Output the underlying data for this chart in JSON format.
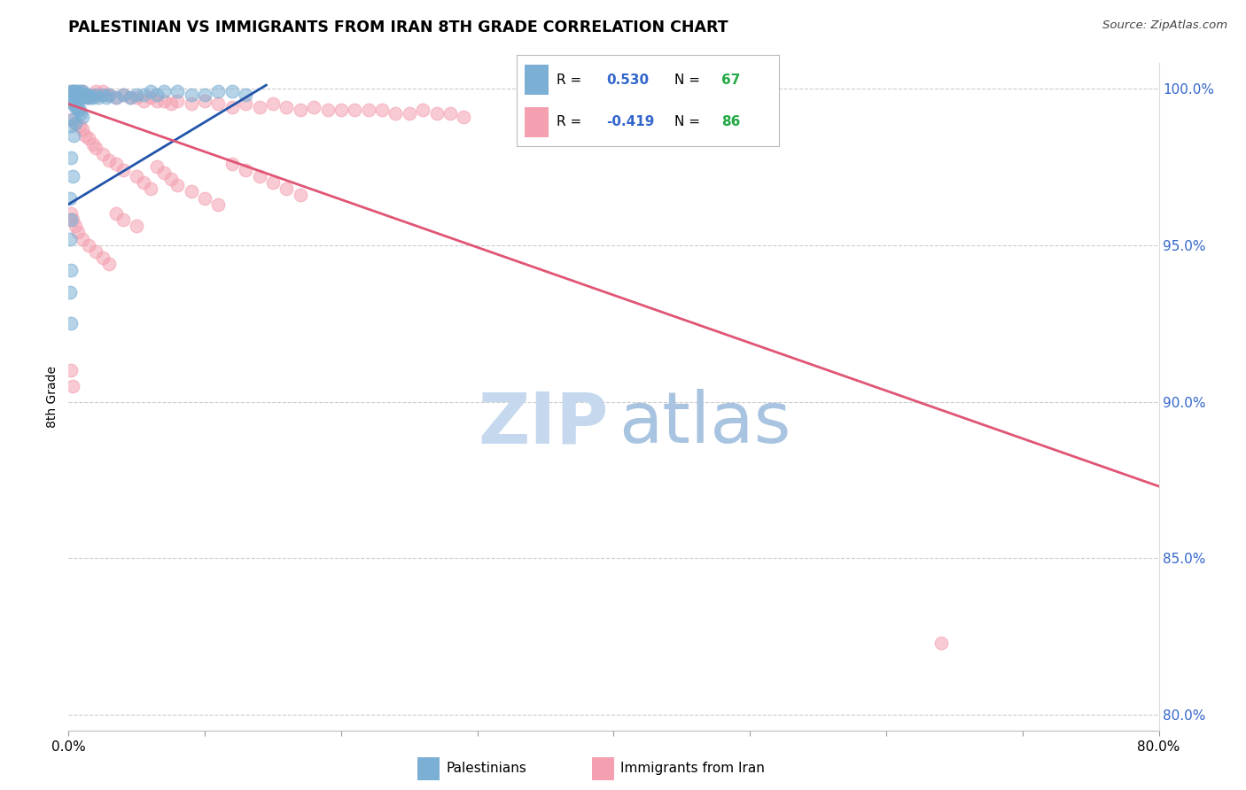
{
  "title": "PALESTINIAN VS IMMIGRANTS FROM IRAN 8TH GRADE CORRELATION CHART",
  "source": "Source: ZipAtlas.com",
  "ylabel": "8th Grade",
  "xlim": [
    0.0,
    0.8
  ],
  "ylim": [
    0.795,
    1.008
  ],
  "xticks": [
    0.0,
    0.1,
    0.2,
    0.3,
    0.4,
    0.5,
    0.6,
    0.7,
    0.8
  ],
  "xticklabels": [
    "0.0%",
    "",
    "",
    "",
    "",
    "",
    "",
    "",
    "80.0%"
  ],
  "yticks_right": [
    0.8,
    0.85,
    0.9,
    0.95,
    1.0
  ],
  "yticklabels_right": [
    "80.0%",
    "85.0%",
    "90.0%",
    "95.0%",
    "100.0%"
  ],
  "blue_color": "#7BAFD4",
  "pink_color": "#F4A0B0",
  "blue_line_color": "#2255AA",
  "pink_line_color": "#E05575",
  "legend_R_color": "#3366CC",
  "legend_N_color": "#22AA44",
  "watermark_zip_color": "#C5D8EE",
  "watermark_atlas_color": "#A8C4E0",
  "grid_color": "#CCCCCC",
  "blue_R": "0.530",
  "blue_N": "67",
  "pink_R": "-0.419",
  "pink_N": "86",
  "blue_scatter": [
    [
      0.001,
      0.999
    ],
    [
      0.002,
      0.998
    ],
    [
      0.002,
      0.997
    ],
    [
      0.003,
      0.999
    ],
    [
      0.003,
      0.998
    ],
    [
      0.004,
      0.999
    ],
    [
      0.004,
      0.998
    ],
    [
      0.004,
      0.997
    ],
    [
      0.005,
      0.999
    ],
    [
      0.005,
      0.998
    ],
    [
      0.005,
      0.997
    ],
    [
      0.006,
      0.999
    ],
    [
      0.006,
      0.998
    ],
    [
      0.007,
      0.998
    ],
    [
      0.007,
      0.997
    ],
    [
      0.008,
      0.999
    ],
    [
      0.008,
      0.998
    ],
    [
      0.009,
      0.997
    ],
    [
      0.01,
      0.999
    ],
    [
      0.01,
      0.998
    ],
    [
      0.011,
      0.998
    ],
    [
      0.012,
      0.997
    ],
    [
      0.013,
      0.998
    ],
    [
      0.014,
      0.997
    ],
    [
      0.015,
      0.998
    ],
    [
      0.016,
      0.997
    ],
    [
      0.018,
      0.997
    ],
    [
      0.02,
      0.998
    ],
    [
      0.022,
      0.997
    ],
    [
      0.025,
      0.998
    ],
    [
      0.028,
      0.997
    ],
    [
      0.03,
      0.998
    ],
    [
      0.035,
      0.997
    ],
    [
      0.04,
      0.998
    ],
    [
      0.045,
      0.997
    ],
    [
      0.05,
      0.998
    ],
    [
      0.055,
      0.998
    ],
    [
      0.06,
      0.999
    ],
    [
      0.065,
      0.998
    ],
    [
      0.07,
      0.999
    ],
    [
      0.08,
      0.999
    ],
    [
      0.09,
      0.998
    ],
    [
      0.1,
      0.998
    ],
    [
      0.11,
      0.999
    ],
    [
      0.12,
      0.999
    ],
    [
      0.13,
      0.998
    ],
    [
      0.002,
      0.996
    ],
    [
      0.003,
      0.995
    ],
    [
      0.004,
      0.995
    ],
    [
      0.005,
      0.994
    ],
    [
      0.006,
      0.994
    ],
    [
      0.007,
      0.993
    ],
    [
      0.008,
      0.993
    ],
    [
      0.009,
      0.992
    ],
    [
      0.01,
      0.991
    ],
    [
      0.003,
      0.99
    ],
    [
      0.005,
      0.989
    ],
    [
      0.002,
      0.988
    ],
    [
      0.004,
      0.985
    ],
    [
      0.002,
      0.978
    ],
    [
      0.003,
      0.972
    ],
    [
      0.001,
      0.965
    ],
    [
      0.002,
      0.958
    ],
    [
      0.001,
      0.952
    ],
    [
      0.002,
      0.942
    ],
    [
      0.001,
      0.935
    ],
    [
      0.002,
      0.925
    ]
  ],
  "pink_scatter": [
    [
      0.003,
      0.999
    ],
    [
      0.005,
      0.998
    ],
    [
      0.007,
      0.997
    ],
    [
      0.008,
      0.998
    ],
    [
      0.01,
      0.999
    ],
    [
      0.012,
      0.998
    ],
    [
      0.015,
      0.997
    ],
    [
      0.018,
      0.998
    ],
    [
      0.02,
      0.999
    ],
    [
      0.022,
      0.998
    ],
    [
      0.025,
      0.999
    ],
    [
      0.028,
      0.998
    ],
    [
      0.03,
      0.998
    ],
    [
      0.035,
      0.997
    ],
    [
      0.04,
      0.998
    ],
    [
      0.045,
      0.997
    ],
    [
      0.05,
      0.997
    ],
    [
      0.055,
      0.996
    ],
    [
      0.06,
      0.997
    ],
    [
      0.065,
      0.996
    ],
    [
      0.07,
      0.996
    ],
    [
      0.075,
      0.995
    ],
    [
      0.08,
      0.996
    ],
    [
      0.09,
      0.995
    ],
    [
      0.1,
      0.996
    ],
    [
      0.11,
      0.995
    ],
    [
      0.12,
      0.994
    ],
    [
      0.13,
      0.995
    ],
    [
      0.14,
      0.994
    ],
    [
      0.15,
      0.995
    ],
    [
      0.16,
      0.994
    ],
    [
      0.17,
      0.993
    ],
    [
      0.18,
      0.994
    ],
    [
      0.19,
      0.993
    ],
    [
      0.2,
      0.993
    ],
    [
      0.21,
      0.993
    ],
    [
      0.22,
      0.993
    ],
    [
      0.23,
      0.993
    ],
    [
      0.24,
      0.992
    ],
    [
      0.25,
      0.992
    ],
    [
      0.26,
      0.993
    ],
    [
      0.27,
      0.992
    ],
    [
      0.28,
      0.992
    ],
    [
      0.29,
      0.991
    ],
    [
      0.002,
      0.99
    ],
    [
      0.005,
      0.989
    ],
    [
      0.008,
      0.988
    ],
    [
      0.01,
      0.987
    ],
    [
      0.012,
      0.985
    ],
    [
      0.015,
      0.984
    ],
    [
      0.018,
      0.982
    ],
    [
      0.02,
      0.981
    ],
    [
      0.025,
      0.979
    ],
    [
      0.03,
      0.977
    ],
    [
      0.035,
      0.976
    ],
    [
      0.04,
      0.974
    ],
    [
      0.05,
      0.972
    ],
    [
      0.055,
      0.97
    ],
    [
      0.06,
      0.968
    ],
    [
      0.065,
      0.975
    ],
    [
      0.07,
      0.973
    ],
    [
      0.075,
      0.971
    ],
    [
      0.08,
      0.969
    ],
    [
      0.09,
      0.967
    ],
    [
      0.1,
      0.965
    ],
    [
      0.11,
      0.963
    ],
    [
      0.12,
      0.976
    ],
    [
      0.13,
      0.974
    ],
    [
      0.14,
      0.972
    ],
    [
      0.15,
      0.97
    ],
    [
      0.16,
      0.968
    ],
    [
      0.17,
      0.966
    ],
    [
      0.002,
      0.96
    ],
    [
      0.003,
      0.958
    ],
    [
      0.005,
      0.956
    ],
    [
      0.007,
      0.954
    ],
    [
      0.01,
      0.952
    ],
    [
      0.015,
      0.95
    ],
    [
      0.02,
      0.948
    ],
    [
      0.025,
      0.946
    ],
    [
      0.03,
      0.944
    ],
    [
      0.035,
      0.96
    ],
    [
      0.04,
      0.958
    ],
    [
      0.05,
      0.956
    ],
    [
      0.002,
      0.91
    ],
    [
      0.003,
      0.905
    ],
    [
      0.64,
      0.823
    ]
  ],
  "blue_line": [
    [
      0.0,
      0.963
    ],
    [
      0.145,
      1.001
    ]
  ],
  "pink_line": [
    [
      0.0,
      0.995
    ],
    [
      0.8,
      0.873
    ]
  ]
}
